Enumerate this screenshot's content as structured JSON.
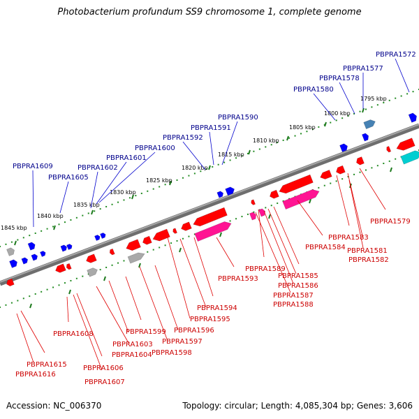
{
  "title": "Photobacterium profundum SS9 chromosome 1, complete genome",
  "footer": {
    "accession": "Accession: NC_006370",
    "summary": "Topology: circular; Length: 4,085,304 bp; Genes: 3,606"
  },
  "scale_labels": [
    "1795 kbp",
    "1800 kbp",
    "1805 kbp",
    "1810 kbp",
    "1815 kbp",
    "1820 kbp",
    "1825 kbp",
    "1830 kbp",
    "1835 kbp",
    "1840 kbp",
    "1845 kbp"
  ],
  "top_gene_labels": [
    "PBPRA1572",
    "PBPRA1577",
    "PBPRA1578",
    "PBPRA1580",
    "PBPRA1590",
    "PBPRA1591",
    "PBPRA1592",
    "PBPRA1600",
    "PBPRA1601",
    "PBPRA1602",
    "PBPRA1605",
    "PBPRA1609"
  ],
  "bottom_gene_labels": [
    "PBPRA1579",
    "PBPRA1583",
    "PBPRA1581",
    "PBPRA1582",
    "PBPRA1584",
    "PBPRA1585",
    "PBPRA1586",
    "PBPRA1587",
    "PBPRA1588",
    "PBPRA1589",
    "PBPRA1593",
    "PBPRA1594",
    "PBPRA1595",
    "PBPRA1596",
    "PBPRA1597",
    "PBPRA1598",
    "PBPRA1599",
    "PBPRA1603",
    "PBPRA1604",
    "PBPRA1606",
    "PBPRA1607",
    "PBPRA1608",
    "PBPRA1615",
    "PBPRA1616"
  ],
  "colors": {
    "backbone": "#808080",
    "scale_dots": "#228b22",
    "forward_gene": "#0000ff",
    "reverse_gene": "#ff0000",
    "magenta_gene": "#ff1493",
    "cyan_gene": "#00ced1",
    "gray_gene": "#a9a9a9",
    "steel_gene": "#4682b4",
    "label_blue": "#00008b",
    "label_red": "#cc0000"
  }
}
